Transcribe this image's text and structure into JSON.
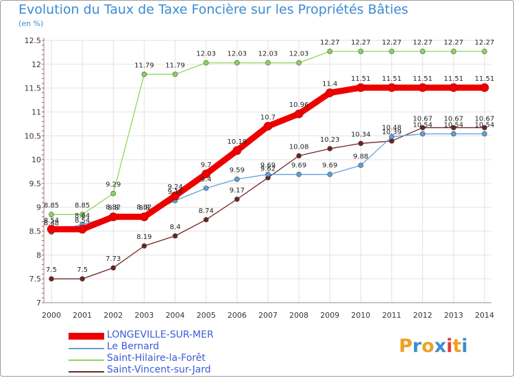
{
  "header": {
    "title": "Evolution du Taux de Taxe Foncière sur les Propriétés Bâties",
    "unit": "(en %)"
  },
  "chart_data": {
    "type": "line",
    "title": "Evolution du Taux de Taxe Foncière sur les Propriétés Bâties",
    "ylabel": "(en %)",
    "xlabel": "",
    "ylim": [
      7,
      12.5
    ],
    "yticks": [
      "7",
      "7.5",
      "8",
      "8.5",
      "9",
      "9.5",
      "10",
      "10.5",
      "11",
      "11.5",
      "12",
      "12.5"
    ],
    "x": [
      "2000",
      "2001",
      "2002",
      "2003",
      "2004",
      "2005",
      "2006",
      "2007",
      "2008",
      "2009",
      "2010",
      "2011",
      "2012",
      "2013",
      "2014"
    ],
    "series": [
      {
        "name": "Saint-Vincent-sur-Jard",
        "color": "#6e2323",
        "values": [
          7.5,
          7.5,
          7.73,
          8.19,
          8.4,
          8.74,
          9.17,
          9.62,
          10.08,
          10.23,
          10.34,
          10.39,
          10.67,
          10.67,
          10.67
        ],
        "labels": [
          "7.5",
          "7.5",
          "7.73",
          "8.19",
          "8.4",
          "8.74",
          "9.17",
          "9.62",
          "10.08",
          "10.23",
          "10.34",
          "10.39",
          "10.67",
          "10.67",
          "10.67"
        ]
      },
      {
        "name": "Saint-Hilaire-la-Forêt",
        "color": "#8cd65a",
        "values": [
          8.85,
          8.85,
          9.29,
          11.79,
          11.79,
          12.03,
          12.03,
          12.03,
          12.03,
          12.27,
          12.27,
          12.27,
          12.27,
          12.27,
          12.27
        ],
        "labels": [
          "8.85",
          "8.85",
          "9.29",
          "11.79",
          "11.79",
          "12.03",
          "12.03",
          "12.03",
          "12.03",
          "12.27",
          "12.27",
          "12.27",
          "12.27",
          "12.27",
          "12.27"
        ]
      },
      {
        "name": "Le Bernard",
        "color": "#5ea0d8",
        "values": [
          8.48,
          8.64,
          8.82,
          8.82,
          9.14,
          9.4,
          9.59,
          9.69,
          9.69,
          9.69,
          9.88,
          10.48,
          10.54,
          10.54,
          10.54
        ],
        "labels": [
          "8.48",
          "8.64",
          "8.82",
          "8.82",
          "9.14",
          "9.4",
          "9.59",
          "9.69",
          "9.69",
          "9.69",
          "9.88",
          "10.48",
          "10.54",
          "10.54",
          "10.54"
        ]
      },
      {
        "name": "LONGEVILLE-SUR-MER",
        "color": "#ee0000",
        "values": [
          8.54,
          8.54,
          8.8,
          8.8,
          9.24,
          9.7,
          10.19,
          10.7,
          10.96,
          11.4,
          11.51,
          11.51,
          11.51,
          11.51,
          11.51
        ],
        "labels": [
          "8.54",
          "8.54",
          "8.8",
          "8.8",
          "9.24",
          "9.7",
          "10.19",
          "10.7",
          "10.96",
          "11.4",
          "11.51",
          "11.51",
          "11.51",
          "11.51",
          "11.51"
        ]
      }
    ],
    "legend": [
      "LONGEVILLE-SUR-MER",
      "Le Bernard",
      "Saint-Hilaire-la-Forêt",
      "Saint-Vincent-sur-Jard"
    ]
  },
  "legend": {
    "items": [
      {
        "label": "LONGEVILLE-SUR-MER",
        "color": "#ee0000"
      },
      {
        "label": "Le Bernard",
        "color": "#5ea0d8"
      },
      {
        "label": "Saint-Hilaire-la-Forêt",
        "color": "#8cd65a"
      },
      {
        "label": "Saint-Vincent-sur-Jard",
        "color": "#6e2323"
      }
    ]
  },
  "logo": {
    "letters": [
      "P",
      "r",
      "o",
      "x",
      "i",
      "t",
      "i"
    ],
    "colors": [
      "#f0a020",
      "#3a8fd0",
      "#f0a020",
      "#3a8fd0",
      "#e23a3a",
      "#f0a020",
      "#3a8fd0"
    ]
  }
}
